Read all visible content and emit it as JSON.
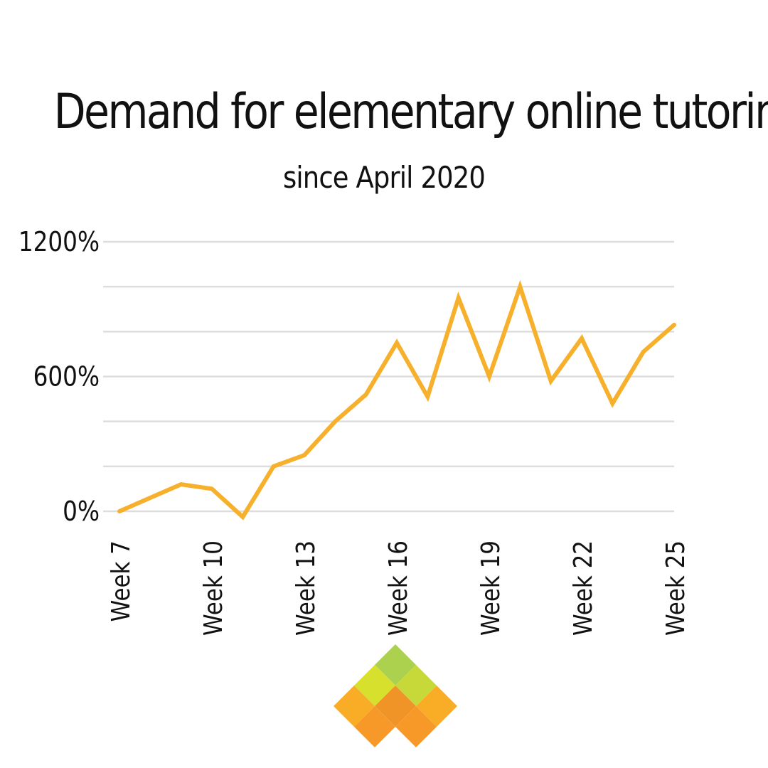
{
  "title": "Demand for elementary online tutoring",
  "subtitle": "since April 2020",
  "colors": {
    "line": "#F7B02B",
    "grid": "#DDDDDD",
    "text": "#111111",
    "logo": [
      "#A8CF45",
      "#D6DE23",
      "#C4D72E",
      "#F9A81A",
      "#F08E1C",
      "#F9A81A",
      "#F7941D",
      "#F7941D"
    ]
  },
  "logo": {
    "icon": "diamond-mosaic-logo-icon"
  },
  "chart_data": {
    "type": "line",
    "title": "Demand for elementary online tutoring",
    "subtitle": "since April 2020",
    "xlabel": "",
    "ylabel": "",
    "x": [
      "Week 7",
      "Week 8",
      "Week 9",
      "Week 10",
      "Week 11",
      "Week 12",
      "Week 13",
      "Week 14",
      "Week 15",
      "Week 16",
      "Week 17",
      "Week 18",
      "Week 19",
      "Week 20",
      "Week 21",
      "Week 22",
      "Week 23",
      "Week 24",
      "Week 25"
    ],
    "x_tick_labels": [
      "Week 7",
      "Week 10",
      "Week 13",
      "Week 16",
      "Week 19",
      "Week 22",
      "Week 25"
    ],
    "series": [
      {
        "values": [
          0,
          60,
          120,
          100,
          -25,
          200,
          250,
          400,
          520,
          750,
          510,
          950,
          600,
          1000,
          580,
          770,
          480,
          710,
          830
        ]
      }
    ],
    "ylim": [
      0,
      1200
    ],
    "y_ticks": [
      0,
      200,
      400,
      600,
      800,
      1000,
      1200
    ],
    "y_tick_labels": [
      "0%",
      "600%",
      "1200%"
    ],
    "y_labeled_ticks": [
      0,
      600,
      1200
    ],
    "grid": true,
    "legend": "none"
  }
}
